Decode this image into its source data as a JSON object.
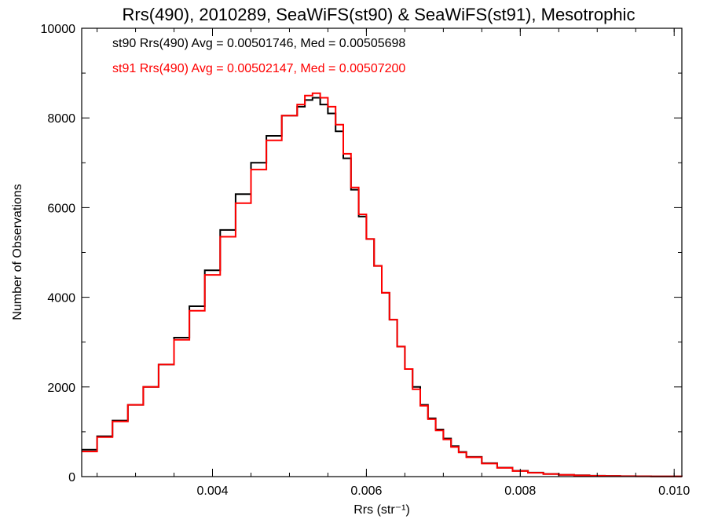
{
  "chart_data": {
    "type": "line",
    "title": "Rrs(490), 2010289, SeaWiFS(st90) & SeaWiFS(st91), Mesotrophic",
    "xlabel": "Rrs (str⁻¹)",
    "ylabel": "Number of Observations",
    "xlim": [
      0.0023,
      0.0101
    ],
    "ylim": [
      0,
      10000
    ],
    "x_ticks": [
      0.004,
      0.006,
      0.008,
      0.01
    ],
    "x_tick_labels": [
      "0.004",
      "0.006",
      "0.008",
      "0.010"
    ],
    "y_ticks": [
      0,
      2000,
      4000,
      6000,
      8000,
      10000
    ],
    "y_tick_labels": [
      "0",
      "2000",
      "4000",
      "6000",
      "8000",
      "10000"
    ],
    "grid": false,
    "step": true,
    "annotations": [
      {
        "text": "st90 Rrs(490) Avg = 0.00501746, Med = 0.00505698",
        "color": "#000000"
      },
      {
        "text": "st91 Rrs(490) Avg = 0.00502147, Med = 0.00507200",
        "color": "#ff0000"
      }
    ],
    "series": [
      {
        "color": "#000000",
        "x": [
          0.0023,
          0.0025,
          0.0027,
          0.0029,
          0.0031,
          0.0033,
          0.0035,
          0.0037,
          0.0039,
          0.0041,
          0.0043,
          0.0045,
          0.0047,
          0.0049,
          0.0051,
          0.0052,
          0.0053,
          0.0054,
          0.0055,
          0.0056,
          0.0057,
          0.0058,
          0.0059,
          0.006,
          0.0061,
          0.0062,
          0.0063,
          0.0064,
          0.0065,
          0.0066,
          0.0067,
          0.0068,
          0.0069,
          0.007,
          0.0071,
          0.0072,
          0.0073,
          0.0075,
          0.0077,
          0.0079,
          0.0081,
          0.0083,
          0.0085,
          0.0087,
          0.0089,
          0.0091,
          0.0093,
          0.0095,
          0.0097,
          0.0099,
          0.0101
        ],
        "values": [
          600,
          900,
          1250,
          1600,
          2000,
          2500,
          3100,
          3800,
          4600,
          5500,
          6300,
          7000,
          7600,
          8050,
          8250,
          8400,
          8450,
          8300,
          8100,
          7700,
          7100,
          6400,
          5800,
          5300,
          4700,
          4100,
          3500,
          2900,
          2400,
          2000,
          1600,
          1300,
          1050,
          850,
          680,
          550,
          440,
          300,
          200,
          130,
          90,
          60,
          40,
          30,
          20,
          15,
          10,
          8,
          5,
          3,
          2
        ]
      },
      {
        "color": "#ff0000",
        "x": [
          0.0023,
          0.0025,
          0.0027,
          0.0029,
          0.0031,
          0.0033,
          0.0035,
          0.0037,
          0.0039,
          0.0041,
          0.0043,
          0.0045,
          0.0047,
          0.0049,
          0.0051,
          0.0052,
          0.0053,
          0.0054,
          0.0055,
          0.0056,
          0.0057,
          0.0058,
          0.0059,
          0.006,
          0.0061,
          0.0062,
          0.0063,
          0.0064,
          0.0065,
          0.0066,
          0.0067,
          0.0068,
          0.0069,
          0.007,
          0.0071,
          0.0072,
          0.0073,
          0.0075,
          0.0077,
          0.0079,
          0.0081,
          0.0083,
          0.0085,
          0.0087,
          0.0089,
          0.0091,
          0.0093,
          0.0095,
          0.0097,
          0.0099,
          0.0101
        ],
        "values": [
          560,
          880,
          1230,
          1600,
          2000,
          2500,
          3050,
          3700,
          4500,
          5350,
          6100,
          6850,
          7500,
          8050,
          8300,
          8500,
          8550,
          8450,
          8250,
          7850,
          7200,
          6450,
          5850,
          5300,
          4700,
          4100,
          3500,
          2900,
          2400,
          1950,
          1580,
          1280,
          1030,
          830,
          660,
          540,
          430,
          290,
          195,
          125,
          85,
          58,
          38,
          27,
          18,
          13,
          9,
          7,
          5,
          3,
          2
        ]
      }
    ]
  }
}
